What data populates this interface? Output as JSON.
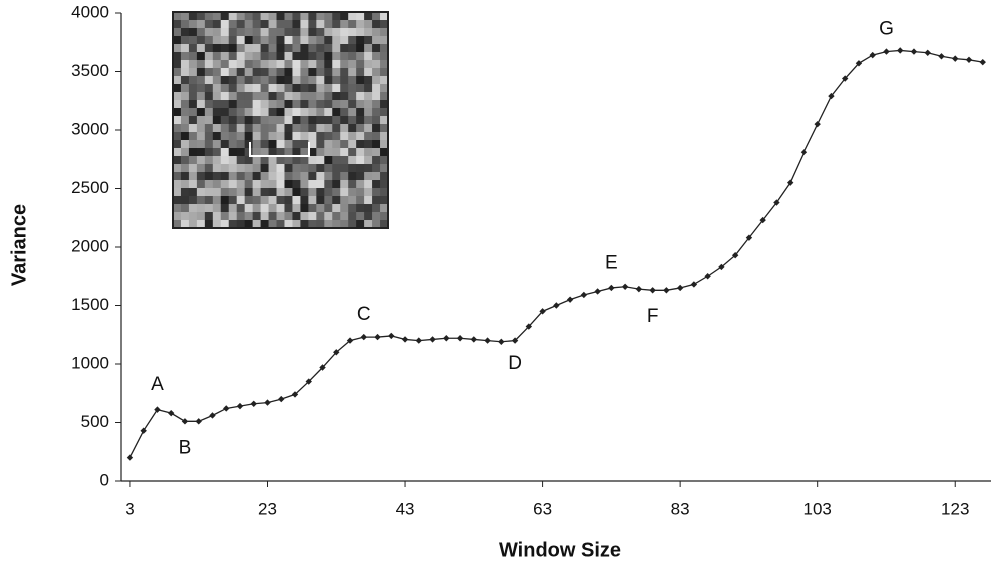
{
  "chart_data": {
    "type": "line",
    "x_label": "Window Size",
    "y_label": "Variance",
    "x": [
      3,
      5,
      7,
      9,
      11,
      13,
      15,
      17,
      19,
      21,
      23,
      25,
      27,
      29,
      31,
      33,
      35,
      37,
      39,
      41,
      43,
      45,
      47,
      49,
      51,
      53,
      55,
      57,
      59,
      61,
      63,
      65,
      67,
      69,
      71,
      73,
      75,
      77,
      79,
      81,
      83,
      85,
      87,
      89,
      91,
      93,
      95,
      97,
      99,
      101,
      103,
      105,
      107,
      109,
      111,
      113,
      115,
      117,
      119,
      121,
      123,
      125,
      127
    ],
    "series": [
      {
        "color": "#222222",
        "values": [
          200,
          430,
          610,
          580,
          510,
          510,
          560,
          620,
          640,
          660,
          670,
          700,
          740,
          850,
          970,
          1100,
          1200,
          1230,
          1230,
          1240,
          1210,
          1200,
          1210,
          1220,
          1220,
          1210,
          1200,
          1190,
          1200,
          1320,
          1450,
          1500,
          1550,
          1590,
          1620,
          1650,
          1660,
          1640,
          1630,
          1630,
          1650,
          1680,
          1750,
          1830,
          1930,
          2080,
          2230,
          2380,
          2550,
          2810,
          3050,
          3290,
          3440,
          3570,
          3640,
          3670,
          3680,
          3670,
          3660,
          3630,
          3610,
          3600,
          3580
        ]
      }
    ],
    "xlim": [
      1.7,
      128.2
    ],
    "ylim": [
      0,
      4000
    ],
    "xticks": [
      3,
      23,
      43,
      63,
      83,
      103,
      123
    ],
    "yticks": [
      0,
      500,
      1000,
      1500,
      2000,
      2500,
      3000,
      3500,
      4000
    ],
    "annotations": [
      {
        "text": "A",
        "x": 7,
        "y": 820
      },
      {
        "text": "B",
        "x": 11,
        "y": 280
      },
      {
        "text": "C",
        "x": 37,
        "y": 1420
      },
      {
        "text": "D",
        "x": 59,
        "y": 1000
      },
      {
        "text": "E",
        "x": 73,
        "y": 1860
      },
      {
        "text": "F",
        "x": 79,
        "y": 1400
      },
      {
        "text": "G",
        "x": 113,
        "y": 3860
      }
    ]
  }
}
